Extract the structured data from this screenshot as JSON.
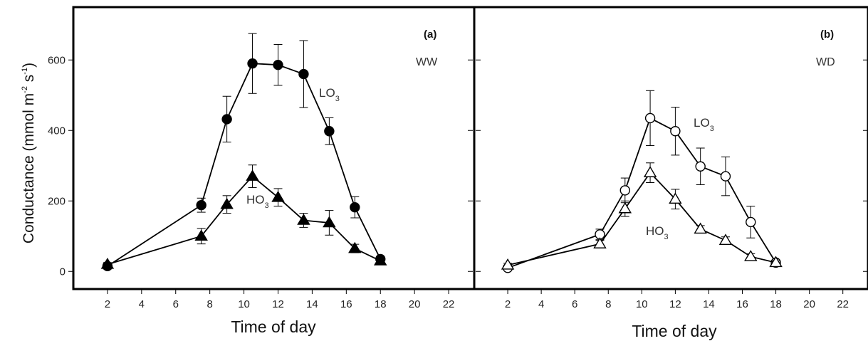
{
  "chart_data": [
    {
      "type": "line",
      "panel_label": "(a)",
      "treatment": "WW",
      "xlabel": "Time of day",
      "ylabel": "Conductance (mmol m-2 s-1)",
      "xlim": [
        0,
        23.5
      ],
      "ylim": [
        -50,
        750
      ],
      "xticks": [
        2,
        4,
        6,
        8,
        10,
        12,
        14,
        16,
        18,
        20,
        22
      ],
      "yticks": [
        0,
        200,
        400,
        600
      ],
      "series": [
        {
          "name": "LO3",
          "marker": "filled-circle",
          "x": [
            2,
            7.5,
            9,
            10.5,
            12,
            13.5,
            15,
            16.5,
            18
          ],
          "y": [
            15,
            188,
            432,
            590,
            586,
            560,
            398,
            182,
            35
          ],
          "err": [
            8,
            20,
            65,
            85,
            58,
            95,
            38,
            30,
            8
          ]
        },
        {
          "name": "HO3",
          "marker": "filled-triangle",
          "x": [
            2,
            7.5,
            9,
            10.5,
            12,
            13.5,
            15,
            16.5,
            18
          ],
          "y": [
            20,
            100,
            190,
            270,
            210,
            145,
            138,
            65,
            30
          ],
          "err": [
            5,
            22,
            25,
            32,
            25,
            20,
            35,
            12,
            5
          ]
        }
      ]
    },
    {
      "type": "line",
      "panel_label": "(b)",
      "treatment": "WD",
      "xlabel": "Time of day",
      "ylabel": "",
      "xlim": [
        0,
        23.5
      ],
      "ylim": [
        -50,
        750
      ],
      "xticks": [
        2,
        4,
        6,
        8,
        10,
        12,
        14,
        16,
        18,
        20,
        22
      ],
      "yticks": [
        0,
        200,
        400,
        600
      ],
      "series": [
        {
          "name": "LO3",
          "marker": "open-circle",
          "x": [
            2,
            7.5,
            9,
            10.5,
            12,
            13.5,
            15,
            16.5,
            18
          ],
          "y": [
            10,
            105,
            230,
            435,
            398,
            298,
            270,
            140,
            25
          ],
          "err": [
            5,
            15,
            35,
            78,
            68,
            52,
            55,
            45,
            5
          ]
        },
        {
          "name": "HO3",
          "marker": "open-triangle",
          "x": [
            2,
            7.5,
            9,
            10.5,
            12,
            13.5,
            15,
            16.5,
            18
          ],
          "y": [
            18,
            78,
            178,
            280,
            205,
            120,
            88,
            42,
            25
          ],
          "err": [
            5,
            10,
            22,
            28,
            28,
            10,
            10,
            8,
            5
          ]
        }
      ]
    }
  ],
  "labels": {
    "panel_a": "(a)",
    "panel_b": "(b)",
    "treat_a": "WW",
    "treat_b": "WD",
    "xlabel_a": "Time of day",
    "xlabel_b": "Time of day",
    "ylabel_main": "Conductance (mmol m",
    "ylabel_exp1": "-2",
    "ylabel_mid": " s",
    "ylabel_exp2": "-1",
    "ylabel_end": ")",
    "lo_main": "LO",
    "ho_main": "HO",
    "sub3": "3"
  }
}
